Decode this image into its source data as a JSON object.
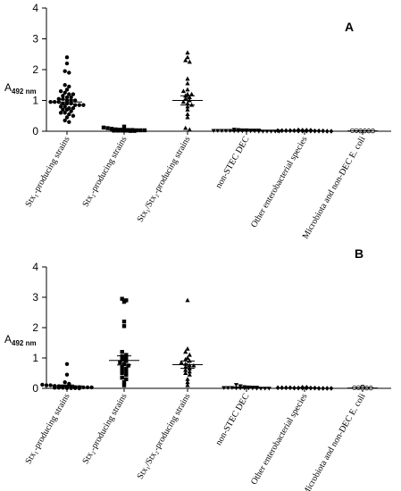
{
  "chart_data": [
    {
      "type": "scatter",
      "panel_label": "A",
      "ylabel": "A",
      "ylabel_sub": "492 nm",
      "ylim": [
        0,
        4
      ],
      "yticks": [
        "0",
        "1",
        "2",
        "3",
        "4"
      ],
      "categories": [
        "Stx₁-producing strains",
        "Stx₂-producing strains",
        "Stx₁/Stx₂-producing strains",
        "non-STEC DEC",
        "Other enterobacterial species",
        "Microbiota and non-DEC E. coli"
      ],
      "groups": [
        {
          "marker": "circle",
          "mean": 0.95,
          "sem": 0.07,
          "values": [
            2.4,
            2.2,
            1.95,
            1.9,
            1.5,
            1.45,
            1.35,
            1.3,
            1.25,
            1.2,
            1.2,
            1.15,
            1.1,
            1.1,
            1.05,
            1.05,
            1.0,
            1.0,
            1.0,
            0.95,
            0.95,
            0.95,
            0.9,
            0.9,
            0.9,
            0.85,
            0.85,
            0.85,
            0.8,
            0.8,
            0.75,
            0.75,
            0.7,
            0.7,
            0.65,
            0.6,
            0.6,
            0.55,
            0.5,
            0.45,
            0.35,
            0.3
          ]
        },
        {
          "marker": "square",
          "mean": 0.05,
          "sem": 0.01,
          "values": [
            0.15,
            0.12,
            0.1,
            0.08,
            0.06,
            0.05,
            0.05,
            0.04,
            0.04,
            0.03,
            0.03,
            0.03,
            0.02,
            0.02,
            0.02,
            0.02,
            0.01,
            0.01
          ]
        },
        {
          "marker": "triangle",
          "mean": 1.0,
          "sem": 0.15,
          "values": [
            2.55,
            2.4,
            2.3,
            2.25,
            1.7,
            1.55,
            1.35,
            1.3,
            1.2,
            1.2,
            1.15,
            1.1,
            1.05,
            1.0,
            0.95,
            0.9,
            0.85,
            0.8,
            0.7,
            0.55,
            0.45,
            0.1,
            0.05
          ]
        },
        {
          "marker": "triangle-down",
          "mean": 0.02,
          "sem": 0.005,
          "values": [
            0.06,
            0.05,
            0.04,
            0.04,
            0.03,
            0.03,
            0.03,
            0.02,
            0.02,
            0.02,
            0.02,
            0.02,
            0.01,
            0.01,
            0.01,
            0.01,
            0.01,
            0.01,
            0.0,
            0.0,
            0.0,
            0.0,
            0.0,
            0.0
          ]
        },
        {
          "marker": "diamond",
          "mean": 0.02,
          "sem": 0.005,
          "values": [
            0.04,
            0.03,
            0.03,
            0.03,
            0.02,
            0.02,
            0.02,
            0.02,
            0.02,
            0.01,
            0.01,
            0.01,
            0.01,
            0.01,
            0.01,
            0.01,
            0.0,
            0.0
          ]
        },
        {
          "marker": "circle-open",
          "mean": 0.01,
          "sem": 0.003,
          "values": [
            0.02,
            0.02,
            0.01,
            0.01,
            0.01,
            0.01
          ]
        }
      ]
    },
    {
      "type": "scatter",
      "panel_label": "B",
      "ylabel": "A",
      "ylabel_sub": "492 nm",
      "ylim": [
        0,
        4
      ],
      "yticks": [
        "0",
        "1",
        "2",
        "3",
        "4"
      ],
      "categories": [
        "Stx₁-producing strains",
        "Stx₂-producing strains",
        "Stx₁/Stx₂-producing strains",
        "non-STEC DEC",
        "Other enterobacterial species",
        "Microbiota and non-DEC E. coli"
      ],
      "groups": [
        {
          "marker": "circle",
          "mean": 0.08,
          "sem": 0.03,
          "values": [
            0.8,
            0.45,
            0.2,
            0.15,
            0.12,
            0.1,
            0.1,
            0.08,
            0.07,
            0.06,
            0.05,
            0.05,
            0.04,
            0.04,
            0.03,
            0.03,
            0.03,
            0.02,
            0.02,
            0.02,
            0.01,
            0.01,
            0.01,
            0.0
          ]
        },
        {
          "marker": "square",
          "mean": 0.92,
          "sem": 0.15,
          "values": [
            2.95,
            2.9,
            2.85,
            2.2,
            2.05,
            1.2,
            1.1,
            1.05,
            1.0,
            0.95,
            0.9,
            0.85,
            0.8,
            0.75,
            0.7,
            0.65,
            0.6,
            0.55,
            0.5,
            0.45,
            0.35,
            0.3,
            0.2,
            0.1
          ]
        },
        {
          "marker": "triangle",
          "mean": 0.78,
          "sem": 0.12,
          "values": [
            2.9,
            1.3,
            1.2,
            1.1,
            1.0,
            0.95,
            0.9,
            0.85,
            0.8,
            0.75,
            0.75,
            0.7,
            0.65,
            0.6,
            0.55,
            0.5,
            0.45,
            0.3,
            0.2,
            0.1
          ]
        },
        {
          "marker": "triangle-down",
          "mean": 0.02,
          "sem": 0.005,
          "values": [
            0.12,
            0.08,
            0.05,
            0.04,
            0.03,
            0.03,
            0.02,
            0.02,
            0.02,
            0.01,
            0.01,
            0.01,
            0.01,
            0.01,
            0.0,
            0.0,
            0.0,
            0.0
          ]
        },
        {
          "marker": "diamond",
          "mean": 0.02,
          "sem": 0.005,
          "values": [
            0.03,
            0.03,
            0.02,
            0.02,
            0.02,
            0.02,
            0.01,
            0.01,
            0.01,
            0.01,
            0.01,
            0.01,
            0.0,
            0.0,
            0.0,
            0.0
          ]
        },
        {
          "marker": "circle-open",
          "mean": 0.01,
          "sem": 0.003,
          "values": [
            0.05,
            0.02,
            0.02,
            0.01,
            0.01,
            0.01
          ]
        }
      ]
    }
  ]
}
